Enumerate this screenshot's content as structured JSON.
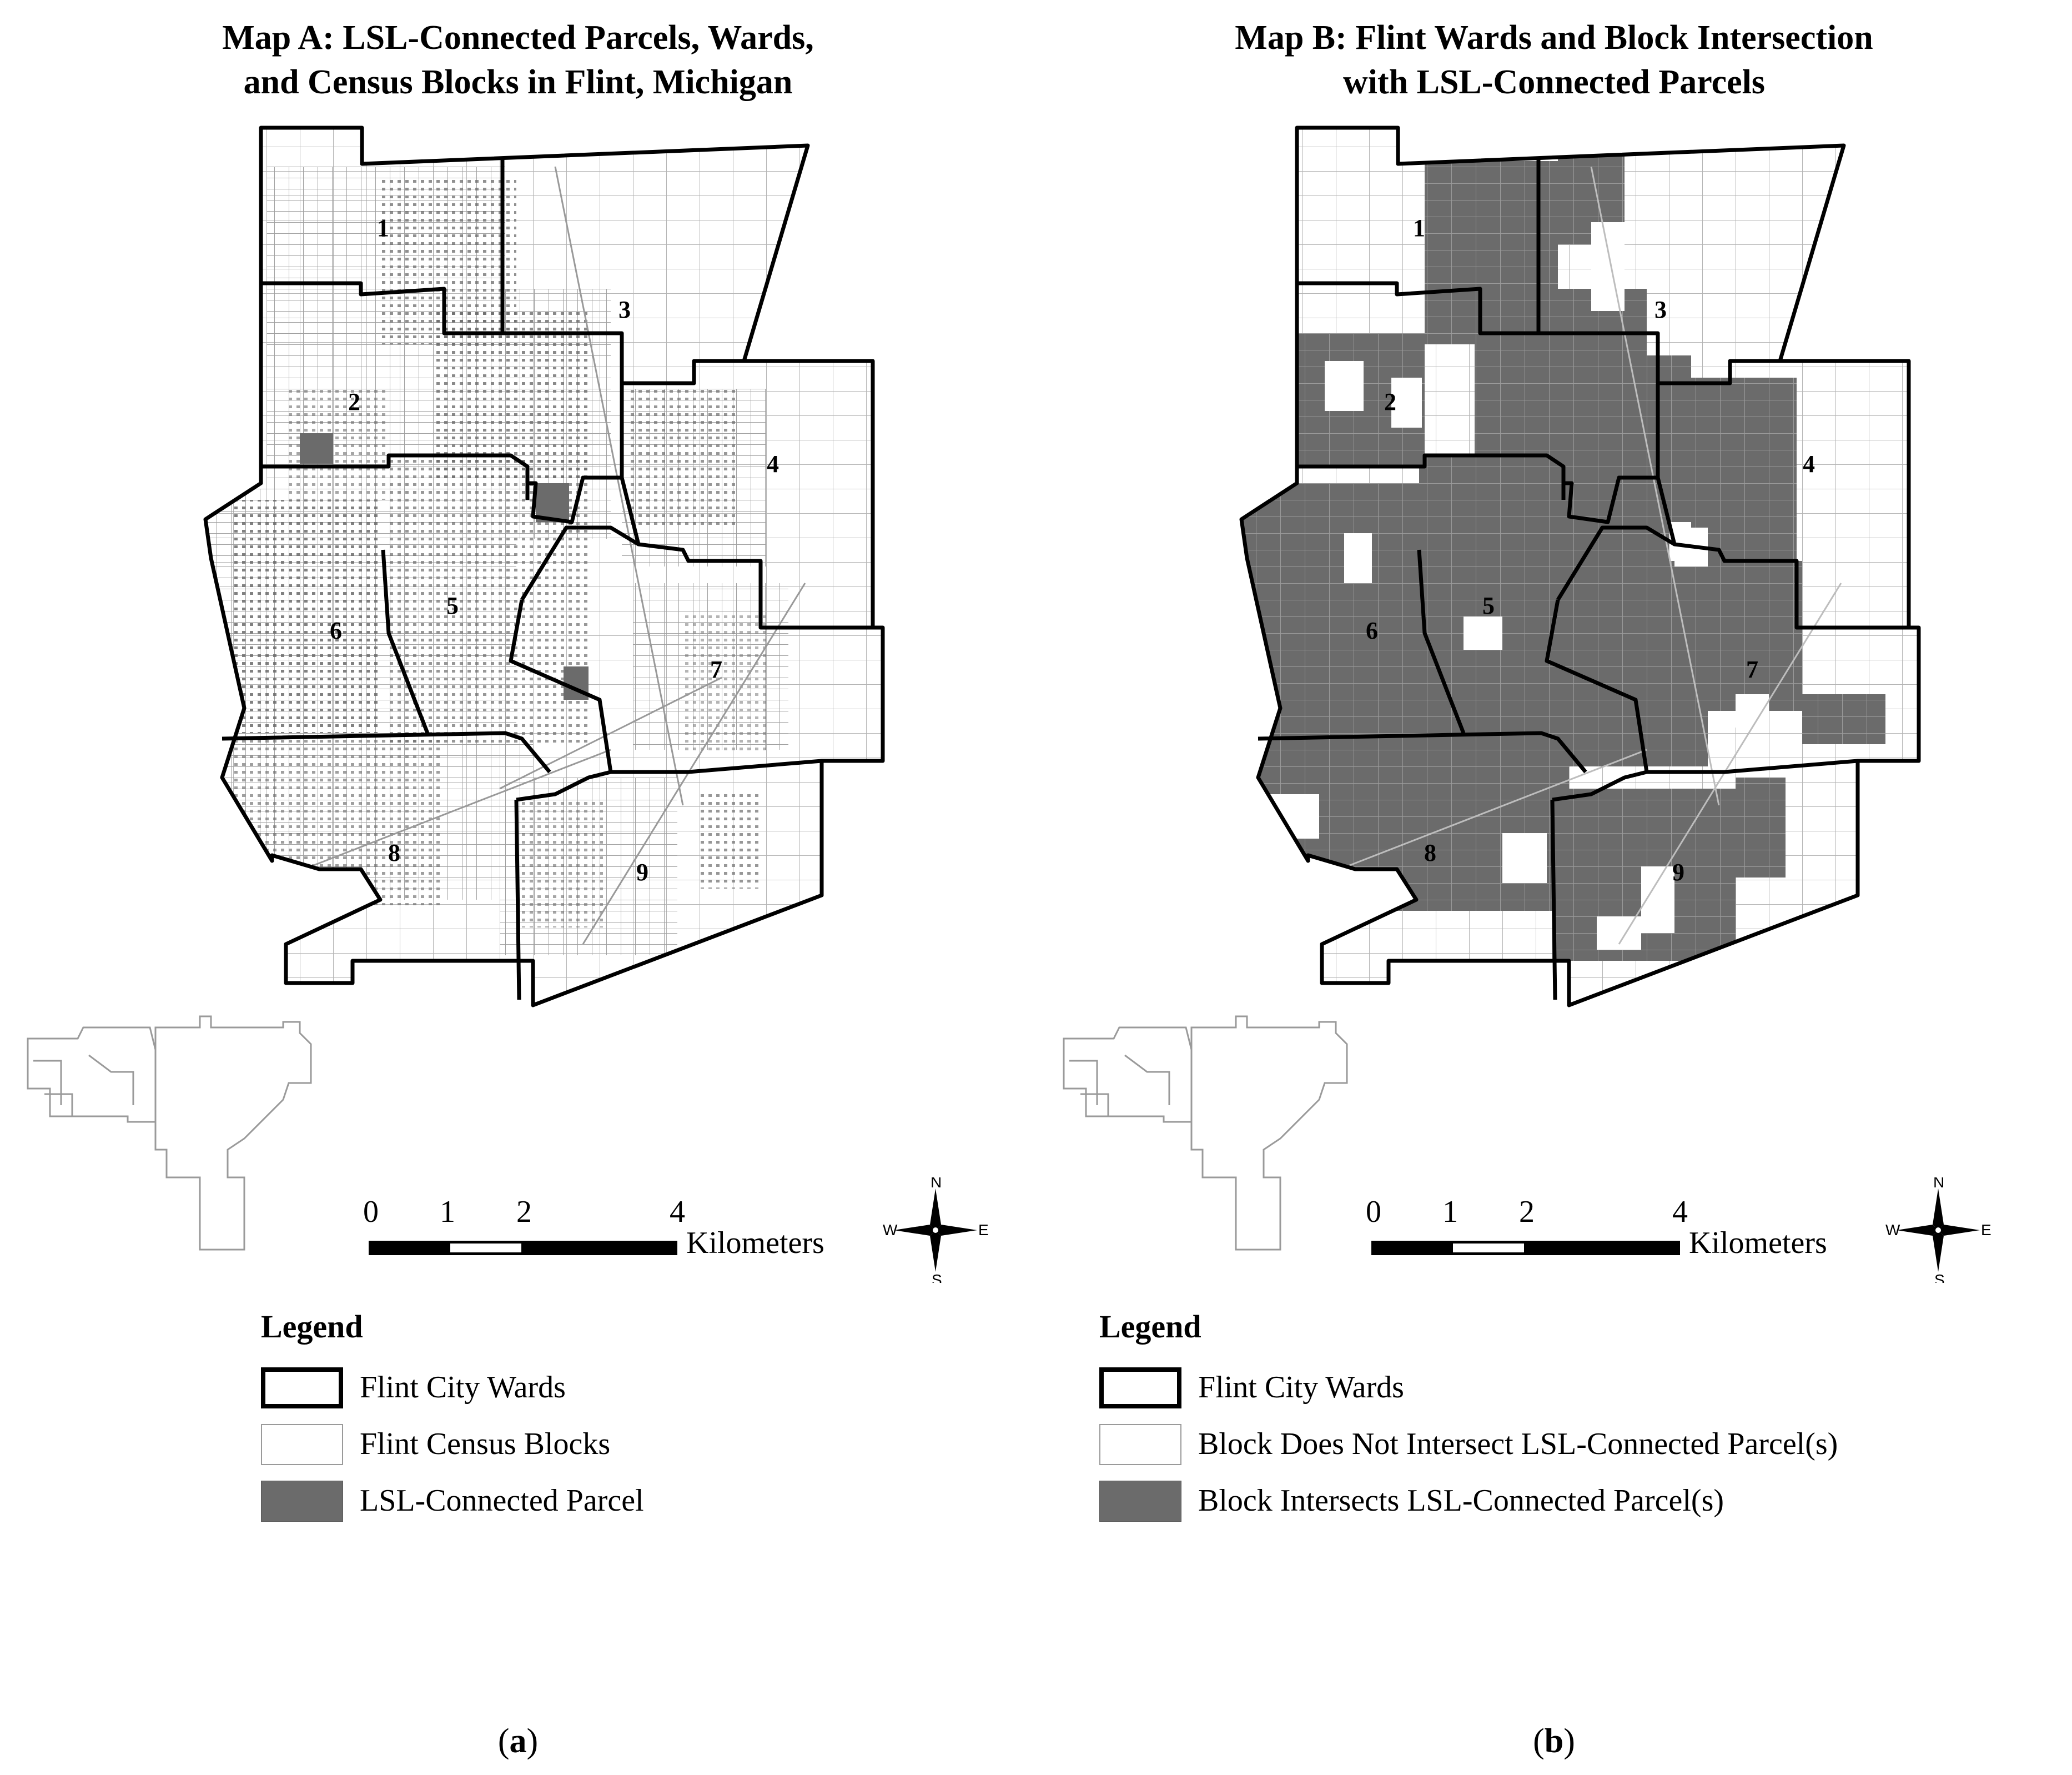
{
  "panels": {
    "a": {
      "title_line1": "Map A: LSL-Connected Parcels, Wards,",
      "title_line2": "and Census Blocks in Flint, Michigan",
      "panel_letter": "a",
      "legend": {
        "title": "Legend",
        "items": [
          {
            "label": "Flint City Wards",
            "style": "ward-boundary"
          },
          {
            "label": "Flint Census Blocks",
            "style": "block-outline"
          },
          {
            "label": "LSL-Connected Parcel",
            "style": "gray-fill"
          }
        ]
      }
    },
    "b": {
      "title_line1": "Map B: Flint Wards and Block Intersection",
      "title_line2": "with LSL-Connected Parcels",
      "panel_letter": "b",
      "legend": {
        "title": "Legend",
        "items": [
          {
            "label": "Flint City Wards",
            "style": "ward-boundary"
          },
          {
            "label": "Block Does Not Intersect LSL-Connected Parcel(s)",
            "style": "block-outline"
          },
          {
            "label": "Block Intersects LSL-Connected Parcel(s)",
            "style": "gray-fill"
          }
        ]
      }
    }
  },
  "ward_labels": [
    "1",
    "2",
    "3",
    "4",
    "5",
    "6",
    "7",
    "8",
    "9"
  ],
  "scale_bar": {
    "ticks": [
      "0",
      "1",
      "2",
      "4"
    ],
    "unit": "Kilometers"
  },
  "compass": {
    "n": "N",
    "s": "S",
    "e": "E",
    "w": "W"
  },
  "colors": {
    "ward_boundary": "#000000",
    "block_outline": "#9a9a9a",
    "lsl_fill": "#6b6b6b",
    "background": "#ffffff"
  },
  "map_notes": {
    "city": "Flint, Michigan"
  }
}
